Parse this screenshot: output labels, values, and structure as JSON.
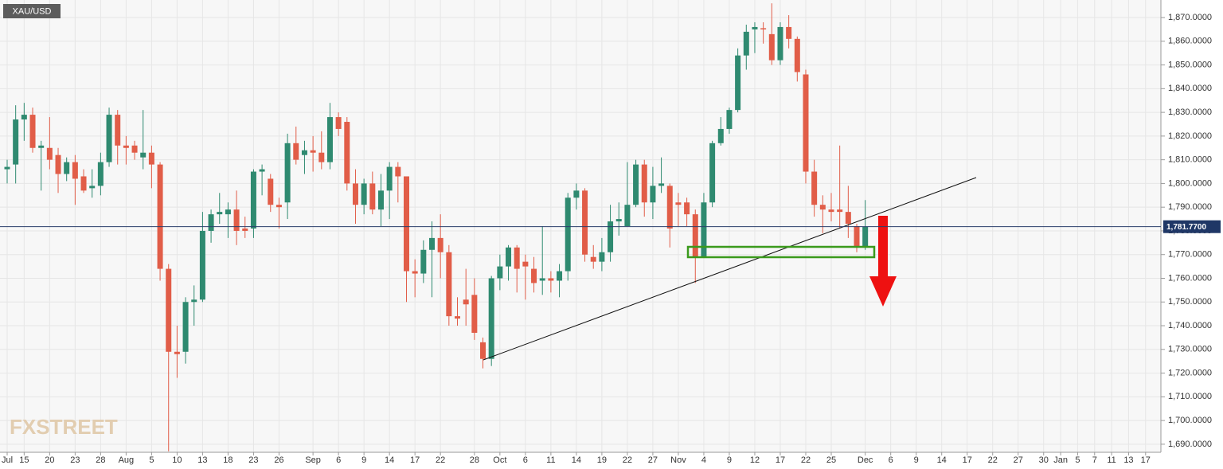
{
  "chart_data": {
    "type": "candlestick",
    "symbol": "XAU/USD",
    "watermark": "FXSTREET",
    "up_color": "#2f8a70",
    "down_color": "#e15d48",
    "grid": true,
    "ylim": [
      1686.6,
      1877.4
    ],
    "yticks": [
      {
        "value": 1690,
        "label": "1,690.0000"
      },
      {
        "value": 1700,
        "label": "1,700.0000"
      },
      {
        "value": 1710,
        "label": "1,710.0000"
      },
      {
        "value": 1720,
        "label": "1,720.0000"
      },
      {
        "value": 1730,
        "label": "1,730.0000"
      },
      {
        "value": 1740,
        "label": "1,740.0000"
      },
      {
        "value": 1750,
        "label": "1,750.0000"
      },
      {
        "value": 1760,
        "label": "1,760.0000"
      },
      {
        "value": 1770,
        "label": "1,770.0000"
      },
      {
        "value": 1780,
        "label": "1,780.0000"
      },
      {
        "value": 1790,
        "label": "1,790.0000"
      },
      {
        "value": 1800,
        "label": "1,800.0000"
      },
      {
        "value": 1810,
        "label": "1,810.0000"
      },
      {
        "value": 1820,
        "label": "1,820.0000"
      },
      {
        "value": 1830,
        "label": "1,830.0000"
      },
      {
        "value": 1840,
        "label": "1,840.0000"
      },
      {
        "value": 1850,
        "label": "1,850.0000"
      },
      {
        "value": 1860,
        "label": "1,860.0000"
      },
      {
        "value": 1870,
        "label": "1,870.0000"
      }
    ],
    "last_price": {
      "value": 1781.77,
      "label": "1,781.7700"
    },
    "categories": [
      "Jul",
      null,
      "15",
      null,
      null,
      "20",
      null,
      null,
      "23",
      null,
      null,
      "28",
      null,
      null,
      "Aug",
      null,
      null,
      "5",
      null,
      null,
      "10",
      null,
      null,
      "13",
      null,
      null,
      "18",
      null,
      null,
      "23",
      null,
      null,
      "26",
      null,
      null,
      null,
      "Sep",
      null,
      null,
      "6",
      null,
      null,
      "9",
      null,
      null,
      "14",
      null,
      null,
      "17",
      null,
      null,
      "22",
      null,
      null,
      null,
      "28",
      null,
      null,
      "Oct",
      null,
      null,
      "6",
      null,
      null,
      "11",
      null,
      null,
      "14",
      null,
      null,
      "19",
      null,
      null,
      "22",
      null,
      null,
      "27",
      null,
      null,
      "Nov",
      null,
      null,
      "4",
      null,
      null,
      "9",
      null,
      null,
      "12",
      null,
      null,
      "17",
      null,
      null,
      "22",
      null,
      null,
      "25",
      null,
      null,
      null,
      "Dec",
      null,
      null,
      "6",
      null,
      null,
      "9",
      null,
      null,
      "14",
      null,
      null,
      "17",
      null,
      null,
      "22",
      null,
      null,
      "27",
      null,
      null,
      "30",
      null,
      "Jan",
      null,
      "5",
      null,
      "7",
      null,
      "11",
      null,
      "13",
      null,
      "17"
    ],
    "ohlc": [
      [
        1806,
        1810,
        1800,
        1807
      ],
      [
        1808,
        1833,
        1800,
        1827
      ],
      [
        1827,
        1834,
        1818,
        1829
      ],
      [
        1829,
        1832,
        1813,
        1815
      ],
      [
        1815,
        1818,
        1797,
        1816
      ],
      [
        1815,
        1828,
        1806,
        1810
      ],
      [
        1812,
        1815,
        1796,
        1804
      ],
      [
        1804,
        1811,
        1801,
        1809
      ],
      [
        1809,
        1812,
        1791,
        1802
      ],
      [
        1803,
        1806,
        1796,
        1797
      ],
      [
        1798,
        1806,
        1794,
        1799
      ],
      [
        1799,
        1813,
        1795,
        1809
      ],
      [
        1809,
        1832,
        1807,
        1829
      ],
      [
        1829,
        1831,
        1808,
        1816
      ],
      [
        1816,
        1820,
        1808,
        1815
      ],
      [
        1816,
        1818,
        1810,
        1813
      ],
      [
        1811,
        1831,
        1806,
        1813
      ],
      [
        1813,
        1816,
        1798,
        1808
      ],
      [
        1808,
        1809,
        1759,
        1764
      ],
      [
        1764,
        1766,
        1687,
        1729
      ],
      [
        1729,
        1740,
        1718,
        1728
      ],
      [
        1729,
        1752,
        1724,
        1750
      ],
      [
        1750,
        1757,
        1740,
        1751
      ],
      [
        1751,
        1788,
        1750,
        1780
      ],
      [
        1780,
        1789,
        1775,
        1787
      ],
      [
        1787,
        1796,
        1783,
        1788
      ],
      [
        1787,
        1792,
        1777,
        1789
      ],
      [
        1789,
        1797,
        1774,
        1780
      ],
      [
        1781,
        1786,
        1777,
        1780
      ],
      [
        1781,
        1806,
        1777,
        1805
      ],
      [
        1805,
        1808,
        1795,
        1806
      ],
      [
        1802,
        1804,
        1788,
        1791
      ],
      [
        1791,
        1794,
        1781,
        1790
      ],
      [
        1792,
        1821,
        1785,
        1817
      ],
      [
        1817,
        1824,
        1808,
        1810
      ],
      [
        1812,
        1818,
        1804,
        1814
      ],
      [
        1814,
        1820,
        1805,
        1813
      ],
      [
        1813,
        1822,
        1806,
        1809
      ],
      [
        1809,
        1834,
        1806,
        1828
      ],
      [
        1828,
        1830,
        1820,
        1823
      ],
      [
        1826,
        1828,
        1797,
        1800
      ],
      [
        1800,
        1806,
        1783,
        1791
      ],
      [
        1791,
        1802,
        1787,
        1800
      ],
      [
        1800,
        1805,
        1787,
        1789
      ],
      [
        1789,
        1804,
        1782,
        1797
      ],
      [
        1797,
        1809,
        1785,
        1807
      ],
      [
        1807,
        1809,
        1792,
        1803
      ],
      [
        1803,
        1803,
        1750,
        1763
      ],
      [
        1763,
        1768,
        1752,
        1762
      ],
      [
        1762,
        1776,
        1758,
        1772
      ],
      [
        1772,
        1784,
        1752,
        1777
      ],
      [
        1777,
        1787,
        1760,
        1771
      ],
      [
        1771,
        1774,
        1740,
        1744
      ],
      [
        1744,
        1752,
        1740,
        1743
      ],
      [
        1751,
        1764,
        1740,
        1749
      ],
      [
        1753,
        1760,
        1734,
        1737
      ],
      [
        1733,
        1735,
        1722,
        1726
      ],
      [
        1726,
        1761,
        1723,
        1760
      ],
      [
        1760,
        1770,
        1755,
        1765
      ],
      [
        1765,
        1774,
        1759,
        1773
      ],
      [
        1773,
        1774,
        1754,
        1764
      ],
      [
        1767,
        1770,
        1751,
        1765
      ],
      [
        1764,
        1769,
        1754,
        1758
      ],
      [
        1759,
        1782,
        1753,
        1760
      ],
      [
        1760,
        1763,
        1754,
        1759
      ],
      [
        1759,
        1766,
        1752,
        1763
      ],
      [
        1763,
        1796,
        1759,
        1794
      ],
      [
        1794,
        1800,
        1789,
        1797
      ],
      [
        1797,
        1798,
        1767,
        1770
      ],
      [
        1769,
        1774,
        1764,
        1767
      ],
      [
        1767,
        1777,
        1763,
        1771
      ],
      [
        1771,
        1791,
        1767,
        1784
      ],
      [
        1784,
        1792,
        1778,
        1785
      ],
      [
        1782,
        1809,
        1782,
        1791
      ],
      [
        1791,
        1810,
        1790,
        1808
      ],
      [
        1808,
        1810,
        1786,
        1792
      ],
      [
        1792,
        1807,
        1785,
        1799
      ],
      [
        1799,
        1811,
        1796,
        1800
      ],
      [
        1799,
        1800,
        1773,
        1781
      ],
      [
        1792,
        1796,
        1782,
        1791
      ],
      [
        1792,
        1794,
        1782,
        1787
      ],
      [
        1787,
        1789,
        1758,
        1769
      ],
      [
        1769,
        1796,
        1769,
        1792
      ],
      [
        1792,
        1818,
        1790,
        1817
      ],
      [
        1817,
        1828,
        1816,
        1823
      ],
      [
        1823,
        1832,
        1821,
        1831
      ],
      [
        1831,
        1857,
        1830,
        1854
      ],
      [
        1854,
        1867,
        1848,
        1864
      ],
      [
        1865,
        1868,
        1855,
        1866
      ],
      [
        1865.5,
        1868,
        1859,
        1865
      ],
      [
        1863,
        1876,
        1850,
        1852
      ],
      [
        1852,
        1868,
        1850,
        1866
      ],
      [
        1866,
        1871,
        1857,
        1861
      ],
      [
        1861,
        1862,
        1843,
        1847
      ],
      [
        1846,
        1848,
        1800,
        1805
      ],
      [
        1805,
        1810,
        1786,
        1791
      ],
      [
        1791,
        1795,
        1779,
        1789
      ],
      [
        1789,
        1796,
        1784,
        1788
      ],
      [
        1789,
        1816,
        1781,
        1788
      ],
      [
        1788,
        1799,
        1777,
        1783
      ],
      [
        1782,
        1783,
        1771,
        1773
      ],
      [
        1773,
        1793,
        1772,
        1781.77
      ],
      null,
      null,
      null,
      null,
      null,
      null,
      null,
      null,
      null,
      null,
      null,
      null,
      null,
      null,
      null,
      null,
      null,
      null,
      null,
      null,
      null,
      null,
      null,
      null,
      null,
      null,
      null,
      null,
      null,
      null,
      null,
      null,
      null
    ]
  }
}
